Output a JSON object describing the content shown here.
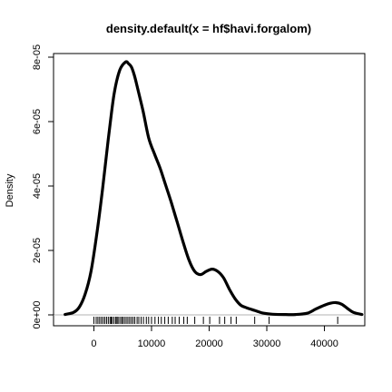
{
  "chart_data": {
    "type": "line",
    "title": "density.default(x = hf$havi.forgalom)",
    "xlabel": "",
    "ylabel": "Density",
    "xlim": [
      -7000,
      47000
    ],
    "ylim": [
      0,
      8.05e-05
    ],
    "x_ticks": [
      0,
      10000,
      20000,
      30000,
      40000
    ],
    "x_tick_labels": [
      "0",
      "10000",
      "20000",
      "30000",
      "40000"
    ],
    "y_ticks": [
      0,
      2e-05,
      4e-05,
      6e-05,
      8e-05
    ],
    "y_tick_labels": [
      "0e+00",
      "2e-05",
      "4e-05",
      "6e-05",
      "8e-05"
    ],
    "grid": false,
    "zero_line": true,
    "series": [
      {
        "x": [
          -5000,
          -3500,
          -2500,
          -1500,
          -500,
          500,
          1500,
          2500,
          3500,
          4500,
          5500,
          6000,
          6500,
          7000,
          7500,
          8500,
          9500,
          10500,
          11500,
          12500,
          13500,
          14500,
          15500,
          16500,
          17500,
          18500,
          19500,
          20500,
          21500,
          22500,
          23500,
          24500,
          25500,
          26500,
          27500,
          28500,
          29500,
          31000,
          33000,
          35000,
          37000,
          38500,
          40000,
          41000,
          42000,
          43000,
          44000,
          45000,
          46500
        ],
        "y": [
          1e-07,
          8e-07,
          2.5e-06,
          6.5e-06,
          1.35e-05,
          2.5e-05,
          3.9e-05,
          5.45e-05,
          6.85e-05,
          7.6e-05,
          7.85e-05,
          7.8e-05,
          7.7e-05,
          7.45e-05,
          7.1e-05,
          6.35e-05,
          5.5e-05,
          5e-05,
          4.55e-05,
          4e-05,
          3.45e-05,
          2.85e-05,
          2.25e-05,
          1.7e-05,
          1.35e-05,
          1.25e-05,
          1.35e-05,
          1.42e-05,
          1.35e-05,
          1.15e-05,
          8e-06,
          5e-06,
          3e-06,
          2.2e-06,
          1.6e-06,
          1e-06,
          5e-07,
          2e-07,
          1e-07,
          1e-07,
          5e-07,
          1.8e-06,
          3e-06,
          3.6e-06,
          3.8e-06,
          3.3e-06,
          2e-06,
          8e-07,
          1e-07
        ]
      }
    ],
    "rug": [
      0,
      400,
      700,
      1000,
      1300,
      1600,
      1900,
      2200,
      2500,
      2800,
      3000,
      3200,
      3500,
      3800,
      4000,
      4200,
      4500,
      4800,
      5000,
      5300,
      5600,
      5900,
      6200,
      6500,
      6800,
      7100,
      7500,
      7800,
      8200,
      8600,
      9100,
      9500,
      10000,
      10600,
      11200,
      11700,
      12300,
      12900,
      13600,
      14100,
      14800,
      15600,
      16200,
      17500,
      19000,
      20100,
      21800,
      22700,
      23800,
      24700,
      27900,
      30400,
      42300
    ]
  }
}
